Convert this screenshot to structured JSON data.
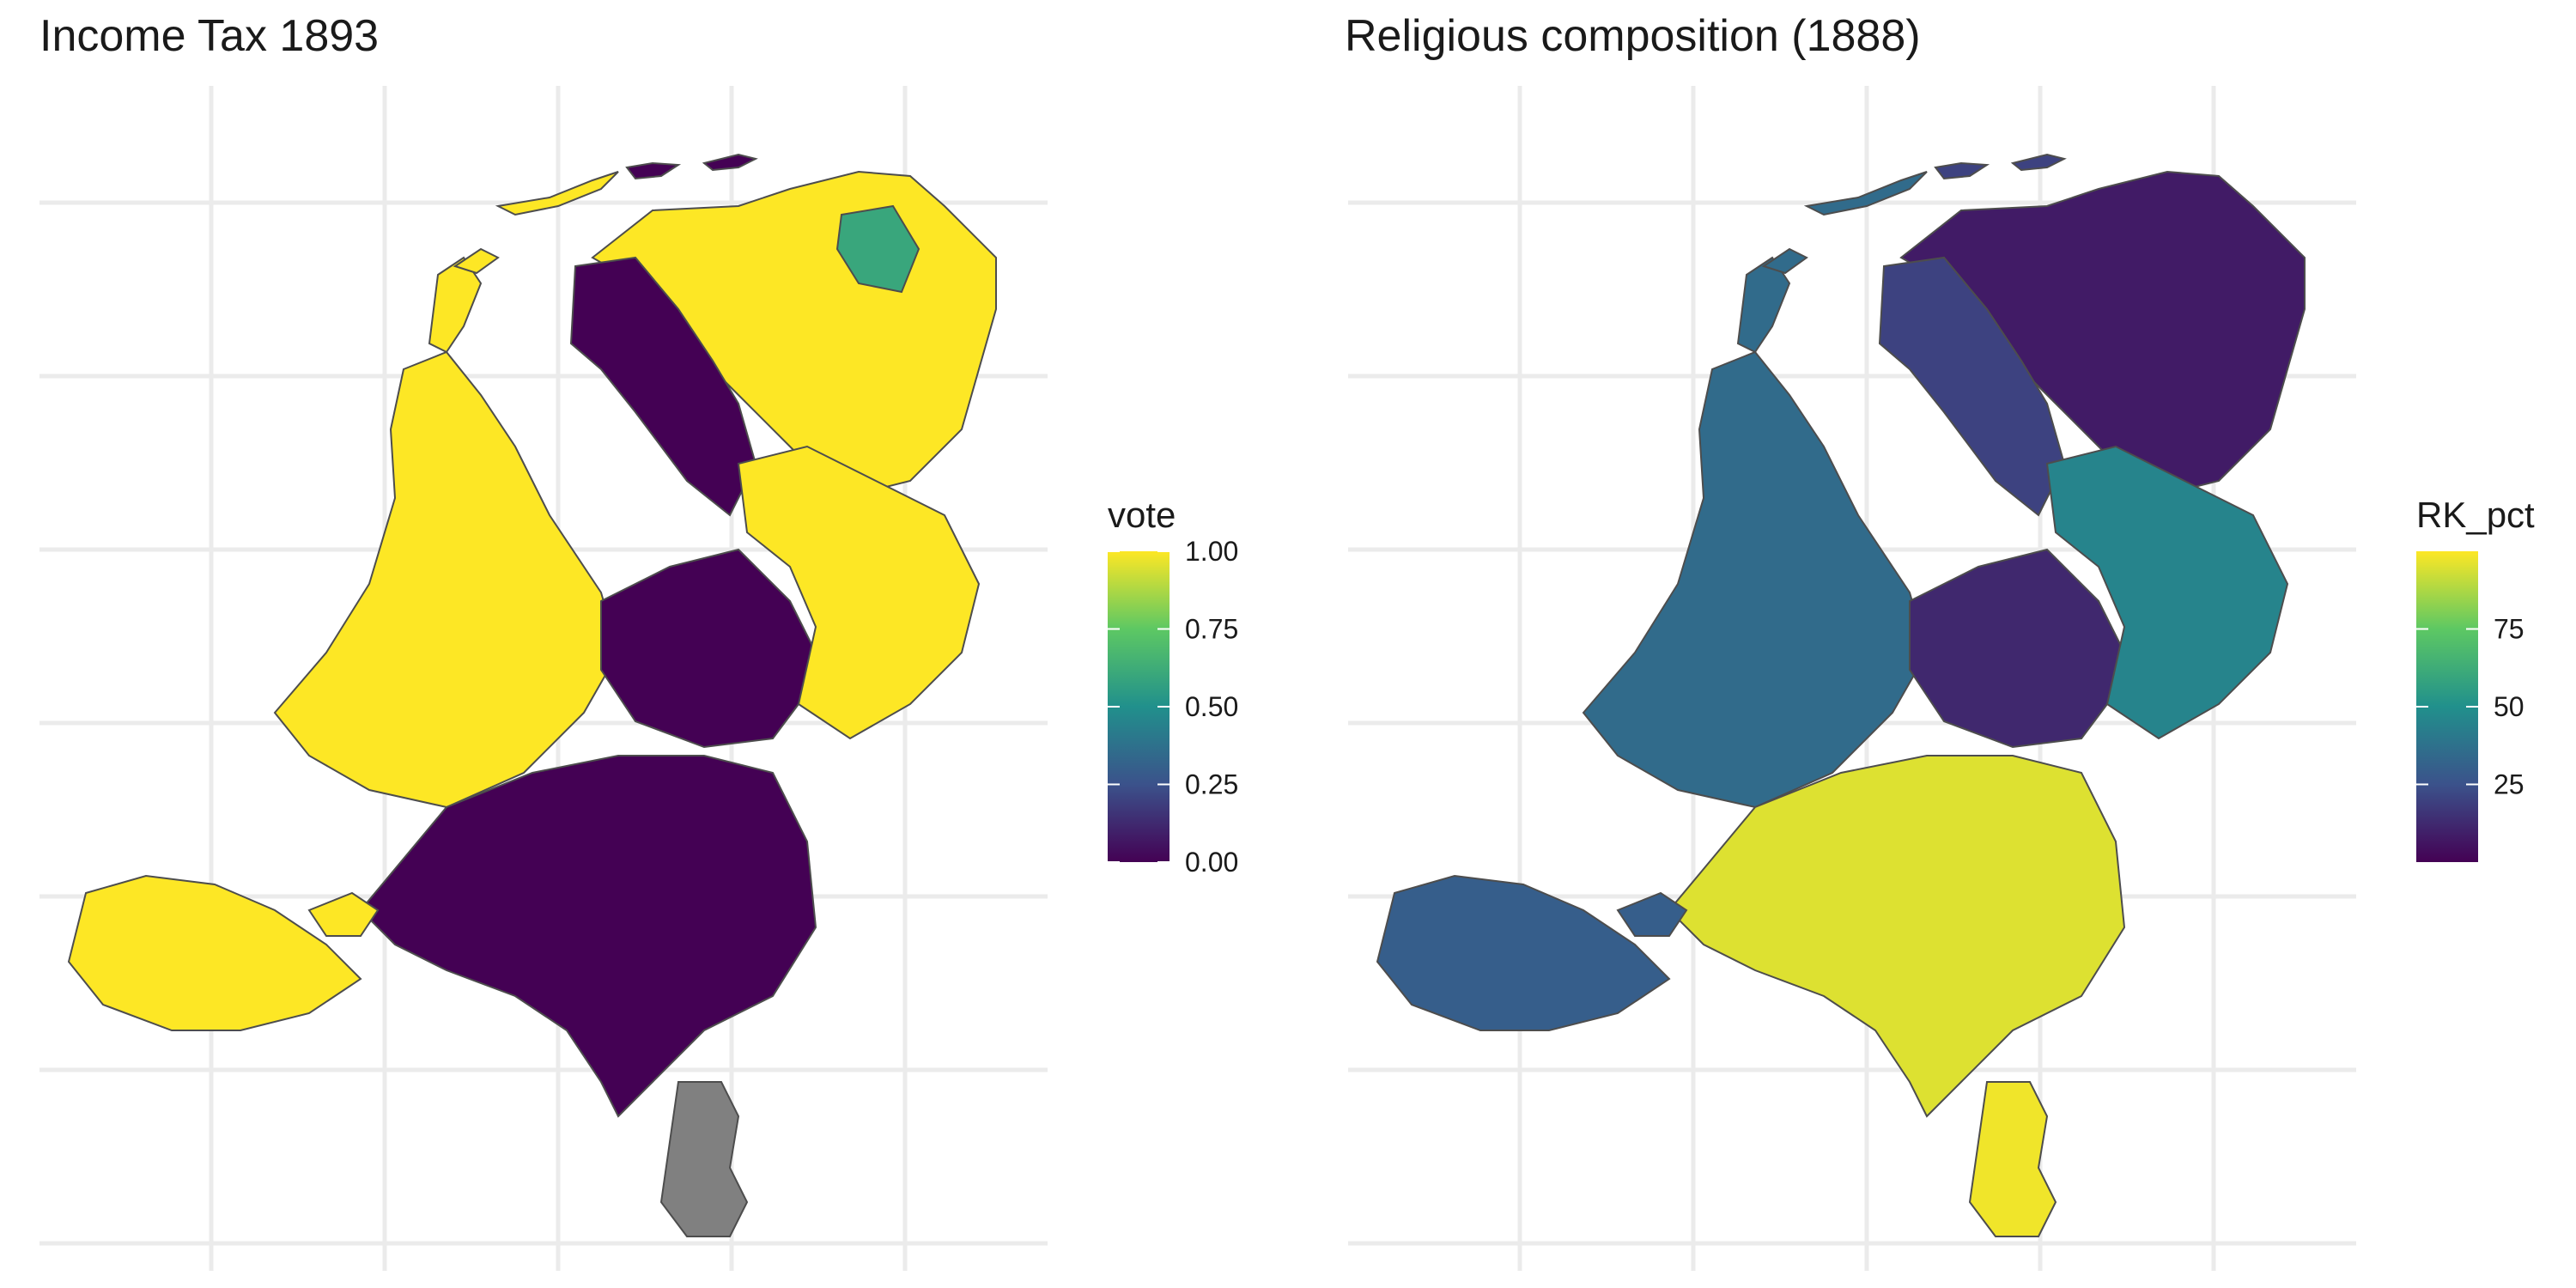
{
  "panels": [
    {
      "title": "Income Tax 1893",
      "legend": {
        "title": "vote",
        "ticks": [
          {
            "value": 1.0,
            "label": "1.00"
          },
          {
            "value": 0.75,
            "label": "0.75"
          },
          {
            "value": 0.5,
            "label": "0.50"
          },
          {
            "value": 0.25,
            "label": "0.25"
          },
          {
            "value": 0.0,
            "label": "0.00"
          }
        ],
        "scale": [
          0.0,
          1.0
        ],
        "colormap": "viridis"
      }
    },
    {
      "title": "Religious composition (1888)",
      "legend": {
        "title": "RK_pct",
        "ticks": [
          {
            "value": 75,
            "label": "75"
          },
          {
            "value": 50,
            "label": "50"
          },
          {
            "value": 25,
            "label": "25"
          }
        ],
        "scale": [
          0,
          100
        ],
        "colormap": "viridis"
      }
    }
  ],
  "colors": {
    "viridis_low": "#440154",
    "viridis_25": "#3b528b",
    "viridis_50": "#21908c",
    "viridis_75": "#5dc863",
    "viridis_high": "#fde725",
    "missing": "#808080",
    "grid": "#ebebeb",
    "border": "#4d4d4d"
  },
  "chart_data": [
    {
      "type": "choropleth",
      "title": "Income Tax 1893",
      "legend_title": "vote",
      "legend_range": [
        0.0,
        1.0
      ],
      "legend_placement": "right",
      "grid": true,
      "regions": [
        {
          "area": "north-east",
          "value": 1.0
        },
        {
          "area": "north-west",
          "value": 0.0
        },
        {
          "area": "groningen-pocket",
          "value": 0.6
        },
        {
          "area": "west",
          "value": 1.0
        },
        {
          "area": "centre",
          "value": 0.0
        },
        {
          "area": "east",
          "value": 1.0
        },
        {
          "area": "south",
          "value": 0.0
        },
        {
          "area": "south-west",
          "value": 1.0
        },
        {
          "area": "limburg",
          "value": null
        }
      ]
    },
    {
      "type": "choropleth",
      "title": "Religious composition (1888)",
      "legend_title": "RK_pct",
      "legend_range": [
        0,
        100
      ],
      "legend_placement": "right",
      "grid": true,
      "regions": [
        {
          "area": "north-east",
          "value": 8
        },
        {
          "area": "north-west",
          "value": 20
        },
        {
          "area": "west",
          "value": 35
        },
        {
          "area": "centre",
          "value": 12
        },
        {
          "area": "east",
          "value": 45
        },
        {
          "area": "south",
          "value": 95
        },
        {
          "area": "south-west",
          "value": 30
        },
        {
          "area": "limburg",
          "value": 98
        }
      ]
    }
  ]
}
